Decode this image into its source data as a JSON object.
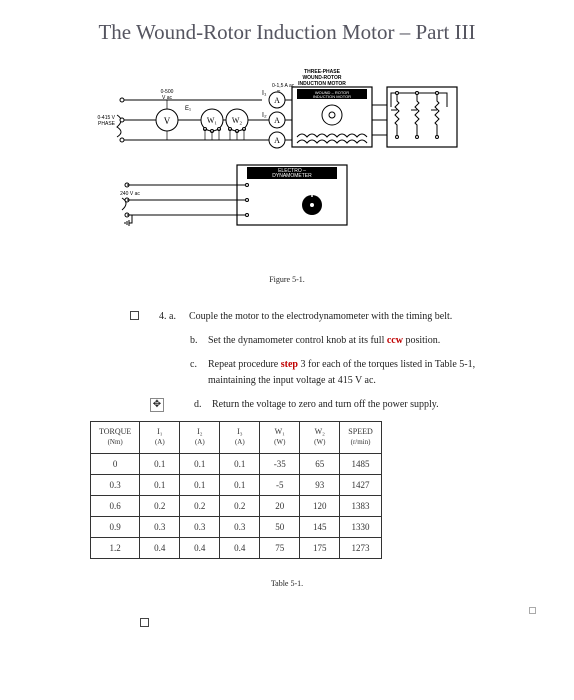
{
  "title": "The Wound-Rotor Induction Motor – Part III",
  "figure_caption": "Figure 5-1.",
  "table_caption": "Table 5-1.",
  "diagram_labels": {
    "top1": "THREE-PHASE",
    "top2": "WOUND-ROTOR",
    "top3": "INDUCTION MOTOR",
    "amps": "0-1,5 A ac",
    "wound_rotor": "WOUND – ROTOR",
    "ind_motor": "INDUCTION MOTOR",
    "volts_small": "0-500",
    "vac": "V ac",
    "left_supply1": "0-415 V",
    "left_supply2": "3 PHASE",
    "electro": "ELECTRO –",
    "dyn": "DYNAMOMETER",
    "bottom_supply": "240 V ac",
    "I": "I",
    "V": "V",
    "W1": "W₁",
    "W2": "W₂",
    "A": "A",
    "E1": "E₁",
    "m": "m"
  },
  "instr": {
    "num": "4. a.",
    "a": "Couple the motor to the electrodynamometer with the timing belt.",
    "b_pre": "Set the dynamometer control knob at its full ",
    "b_red": "ccw",
    "b_post": " position.",
    "c_pre": "Repeat procedure ",
    "c_red": "step",
    "c_post": " 3 for each of the torques listed in Table 5-1, maintaining the input voltage at 415 V ac.",
    "d": "Return the voltage to zero and turn off the power supply."
  },
  "table": {
    "headers": {
      "torque": "TORQUE",
      "torque_u": "(Nm)",
      "I1": "I₁",
      "I1u": "(A)",
      "I2": "I₂",
      "I2u": "(A)",
      "I3": "I₃",
      "I3u": "(A)",
      "W1": "W₁",
      "W1u": "(W)",
      "W2": "W₂",
      "W2u": "(W)",
      "speed": "SPEED",
      "speed_u": "(r/min)"
    },
    "rows": [
      {
        "t": "0",
        "i1": "0.1",
        "i2": "0.1",
        "i3": "0.1",
        "w1": "-35",
        "w2": "65",
        "s": "1485"
      },
      {
        "t": "0.3",
        "i1": "0.1",
        "i2": "0.1",
        "i3": "0.1",
        "w1": "-5",
        "w2": "93",
        "s": "1427"
      },
      {
        "t": "0.6",
        "i1": "0.2",
        "i2": "0.2",
        "i3": "0.2",
        "w1": "20",
        "w2": "120",
        "s": "1383"
      },
      {
        "t": "0.9",
        "i1": "0.3",
        "i2": "0.3",
        "i3": "0.3",
        "w1": "50",
        "w2": "145",
        "s": "1330"
      },
      {
        "t": "1.2",
        "i1": "0.4",
        "i2": "0.4",
        "i3": "0.4",
        "w1": "75",
        "w2": "175",
        "s": "1273"
      }
    ]
  }
}
